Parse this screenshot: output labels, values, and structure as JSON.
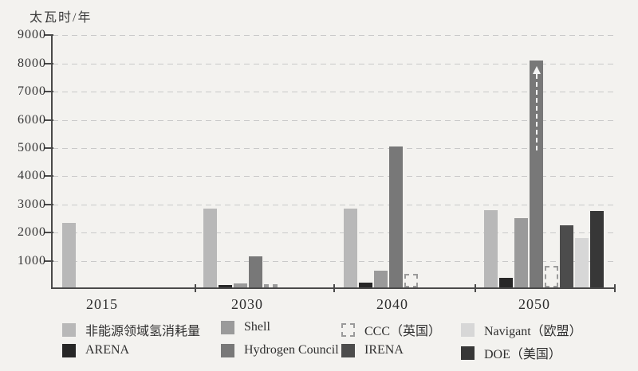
{
  "page": {
    "background": "#f3f2ef"
  },
  "chart_data": {
    "type": "bar",
    "unit_label": "太瓦时/年",
    "categories": [
      "2015",
      "2030",
      "2040",
      "2050"
    ],
    "ylim": [
      0,
      9000
    ],
    "ytick_step": 1000,
    "ytick_labels": [
      "1000",
      "2000",
      "3000",
      "4000",
      "5000",
      "6000",
      "7000",
      "8000",
      "9000"
    ],
    "grid": "horizontal-dashed",
    "grid_color": "#c9c9c9",
    "axis_color": "#4a4a4a",
    "text_color": "#2f2f2f",
    "legend_position": "bottom",
    "series": [
      {
        "name": "非能源领域氢消耗量",
        "color": "#b8b8b8",
        "style": "solid",
        "values": [
          2300,
          2800,
          2800,
          2750
        ]
      },
      {
        "name": "ARENA",
        "color": "#272727",
        "style": "solid",
        "values": [
          null,
          50,
          170,
          350
        ]
      },
      {
        "name": "Shell",
        "color": "#9a9a9a",
        "style": "solid",
        "values": [
          null,
          150,
          580,
          2450
        ]
      },
      {
        "name": "Hydrogen Council",
        "color": "#787878",
        "style": "solid",
        "values": [
          null,
          1100,
          5000,
          8050
        ]
      },
      {
        "name": "CCC（英国）",
        "color": "#9a9a9a",
        "style": "dashed-outline",
        "values": [
          null,
          90,
          480,
          770
        ]
      },
      {
        "name": "IRENA",
        "color": "#4c4c4c",
        "style": "solid",
        "values": [
          null,
          null,
          null,
          2200
        ]
      },
      {
        "name": "Navigant（欧盟）",
        "color": "#d7d7d7",
        "style": "solid",
        "values": [
          null,
          null,
          null,
          1750
        ]
      },
      {
        "name": "DOE（美国）",
        "color": "#373737",
        "style": "solid",
        "values": [
          null,
          null,
          null,
          2700
        ]
      }
    ],
    "annotations": [
      {
        "series": "Hydrogen Council",
        "category": "2050",
        "symbol": "dashed-up-arrow",
        "meaning": "value extends beyond 8000 axis range"
      }
    ],
    "legend": {
      "row1": [
        "非能源领域氢消耗量",
        "Shell",
        "CCC（英国）",
        "Navigant（欧盟）"
      ],
      "row2": [
        "ARENA",
        "Hydrogen Council",
        "IRENA",
        "DOE（美国）"
      ]
    }
  }
}
